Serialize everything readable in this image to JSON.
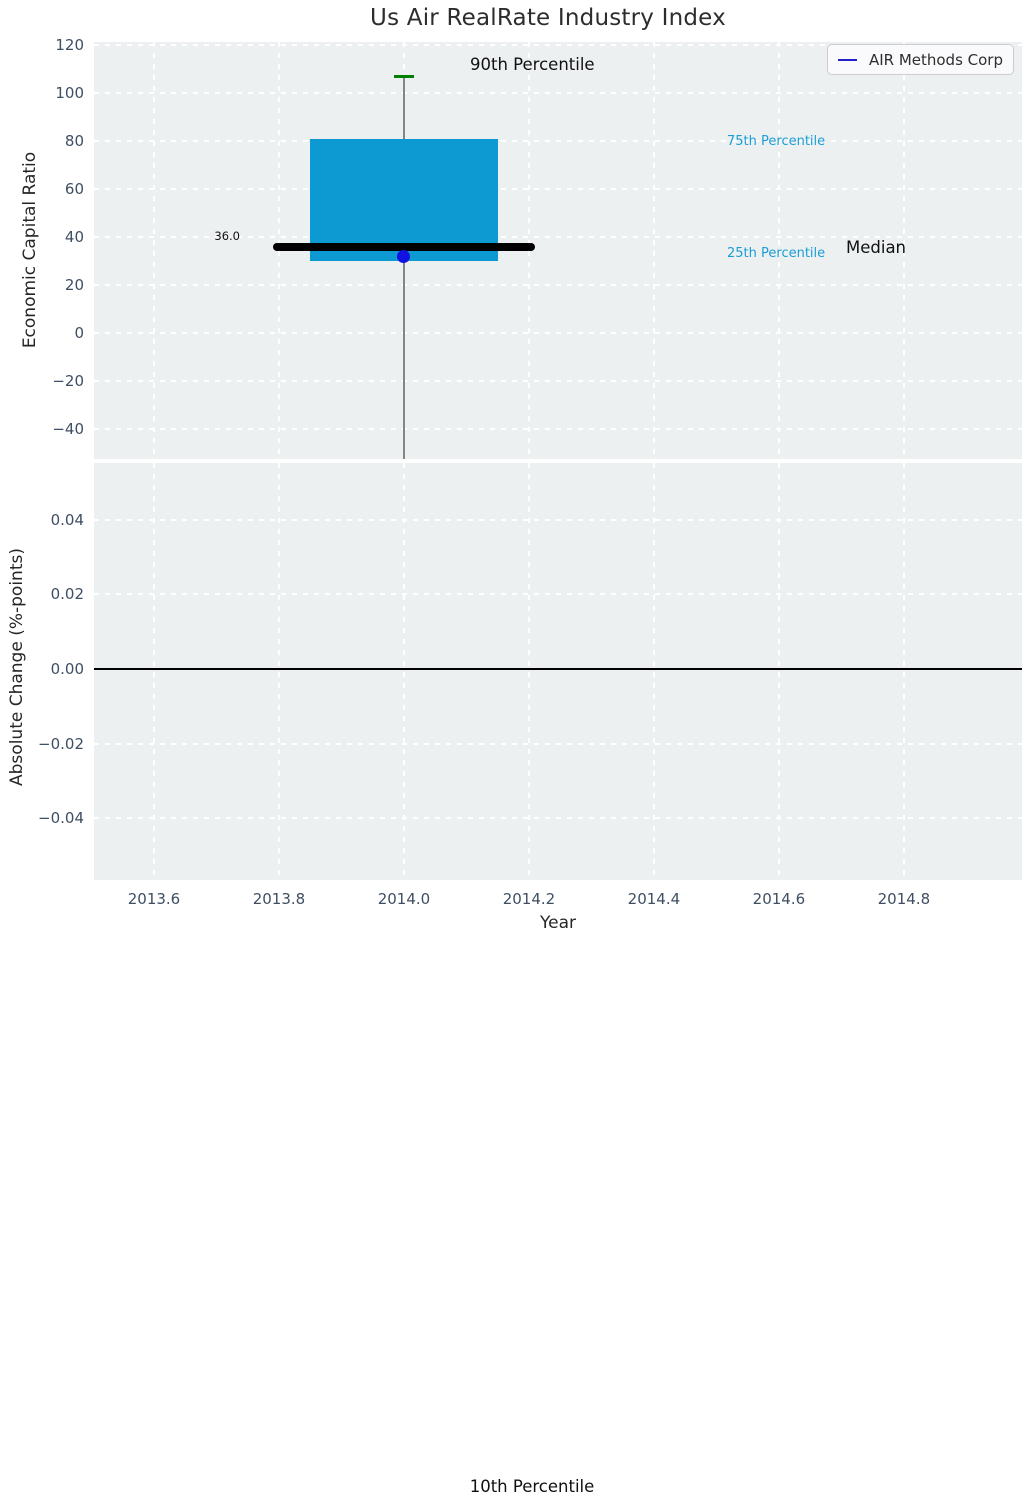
{
  "title": "Us Air RealRate Industry Index",
  "axis_labels": {
    "top_y": "Economic Capital Ratio",
    "bottom_y": "Absolute Change (%-points)",
    "x": "Year"
  },
  "annotations": {
    "p90_label": "90th Percentile",
    "p75_label": "75th Percentile",
    "p25_label": "25th Percentile",
    "median_label": "Median",
    "median_value": "36.0",
    "p10_label": "10th Percentile"
  },
  "colors": {
    "axes_bg": "#edf0f1",
    "grid": "#ffffff",
    "tick_label": "#3e4e63",
    "text": "#262626",
    "box_fill": "#0d9ad2",
    "median_line": "#000000",
    "whisker": "#858585",
    "cap": "#008000",
    "company_point": "#1111e0",
    "legend_line": "#2222cc",
    "percentile_label": "#1b9ed6",
    "zero_line": "#000000"
  },
  "chart_data": [
    {
      "type": "box",
      "title": "Us Air RealRate Industry Index",
      "xlabel": "",
      "ylabel": "Economic Capital Ratio",
      "xlim": [
        2013.504,
        2014.989
      ],
      "ylim": [
        -52.5,
        121.25
      ],
      "grid": "white dashed, on",
      "legend": {
        "position": "upper right",
        "entries": [
          {
            "label": "AIR Methods Corp",
            "type": "line",
            "color": "#2222cc"
          }
        ]
      },
      "xticks": {
        "values": [
          2013.6,
          2013.8,
          2014.0,
          2014.2,
          2014.4,
          2014.6,
          2014.8
        ],
        "labels": [
          "2013.6",
          "2013.8",
          "2014.0",
          "2014.2",
          "2014.4",
          "2014.6",
          "2014.8"
        ],
        "show_labels": false
      },
      "yticks": {
        "values": [
          120,
          100,
          80,
          60,
          40,
          20,
          0,
          -20,
          -40
        ],
        "labels": [
          "120",
          "100",
          "80",
          "60",
          "40",
          "20",
          "0",
          "−20",
          "−40"
        ]
      },
      "box": {
        "x": 2014.0,
        "p90": 107,
        "q3": 81,
        "median": 36.0,
        "q1": 30,
        "p10_below_axis": true,
        "box_halfwidth": 0.15,
        "median_halfwidth": 0.21,
        "cap_halfwidth": 0.016
      },
      "series": [
        {
          "name": "AIR Methods Corp",
          "x": [
            2014.0
          ],
          "y": [
            32
          ]
        }
      ]
    },
    {
      "type": "line",
      "title": "",
      "xlabel": "Year",
      "ylabel": "Absolute Change (%-points)",
      "xlim": [
        2013.504,
        2014.989
      ],
      "ylim": [
        -0.0565,
        0.0552
      ],
      "grid": "white dashed, on",
      "xticks": {
        "values": [
          2013.6,
          2013.8,
          2014.0,
          2014.2,
          2014.4,
          2014.6,
          2014.8
        ],
        "labels": [
          "2013.6",
          "2013.8",
          "2014.0",
          "2014.2",
          "2014.4",
          "2014.6",
          "2014.8"
        ],
        "show_labels": true
      },
      "yticks": {
        "values": [
          0.04,
          0.02,
          0.0,
          -0.02,
          -0.04
        ],
        "labels": [
          "0.04",
          "0.02",
          "0.00",
          "−0.02",
          "−0.04"
        ]
      },
      "zero_line": 0.0,
      "series": []
    }
  ]
}
